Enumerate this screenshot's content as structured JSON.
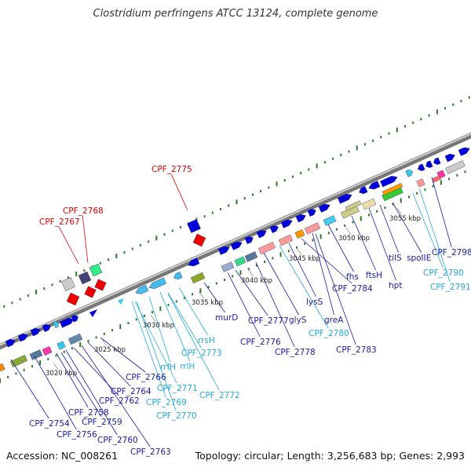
{
  "title": "Clostridium perfringens ATCC 13124, complete genome",
  "footer": {
    "accession": "Accession: NC_008261",
    "topology": "Topology: circular; Length: 3,256,683 bp; Genes: 2,993"
  },
  "colors": {
    "gene_blue": "#0000dd",
    "trna_cyan": "#33ccee",
    "red_feature": "#ee0000",
    "label_blue": "#1a1aaa",
    "label_cyan": "#22aadd",
    "label_red": "#dd0000",
    "tick_green": "#2a7a2a"
  },
  "kbp_marks": [
    "3020 kbp",
    "3025 kbp",
    "3030 kbp",
    "3035 kbp",
    "3040 kbp",
    "3045 kbp",
    "3050 kbp",
    "3055 kbp"
  ],
  "labels": [
    {
      "text": "CPF_2775",
      "color": "red"
    },
    {
      "text": "CPF_2768",
      "color": "red"
    },
    {
      "text": "CPF_2767",
      "color": "red"
    },
    {
      "text": "murD",
      "color": "blue"
    },
    {
      "text": "CPF_2777",
      "color": "blue"
    },
    {
      "text": "CPF_2776",
      "color": "blue"
    },
    {
      "text": "glyS",
      "color": "blue"
    },
    {
      "text": "CPF_2778",
      "color": "blue"
    },
    {
      "text": "lysS",
      "color": "blue"
    },
    {
      "text": "CPF_2780",
      "color": "cyan"
    },
    {
      "text": "greA",
      "color": "blue"
    },
    {
      "text": "CPF_2784",
      "color": "blue"
    },
    {
      "text": "fhs",
      "color": "blue"
    },
    {
      "text": "ftsH",
      "color": "blue"
    },
    {
      "text": "CPF_2783",
      "color": "blue"
    },
    {
      "text": "hpt",
      "color": "blue"
    },
    {
      "text": "tilS",
      "color": "blue"
    },
    {
      "text": "spoIIE",
      "color": "blue"
    },
    {
      "text": "CPF_2798",
      "color": "blue"
    },
    {
      "text": "CPF_2790",
      "color": "cyan"
    },
    {
      "text": "CPF_2791",
      "color": "cyan"
    },
    {
      "text": "rrsH",
      "color": "cyan"
    },
    {
      "text": "CPF_2773",
      "color": "cyan"
    },
    {
      "text": "rrfH",
      "color": "cyan"
    },
    {
      "text": "rrlH",
      "color": "cyan"
    },
    {
      "text": "CPF_2772",
      "color": "cyan"
    },
    {
      "text": "CPF_2771",
      "color": "cyan"
    },
    {
      "text": "CPF_2769",
      "color": "cyan"
    },
    {
      "text": "CPF_2770",
      "color": "cyan"
    },
    {
      "text": "CPF_2766",
      "color": "blue"
    },
    {
      "text": "CPF_2764",
      "color": "blue"
    },
    {
      "text": "CPF_2762",
      "color": "blue"
    },
    {
      "text": "CPF_2758",
      "color": "blue"
    },
    {
      "text": "CPF_2759",
      "color": "blue"
    },
    {
      "text": "CPF_2754",
      "color": "blue"
    },
    {
      "text": "CPF_2756",
      "color": "blue"
    },
    {
      "text": "CPF_2760",
      "color": "blue"
    },
    {
      "text": "CPF_2763",
      "color": "blue"
    }
  ]
}
